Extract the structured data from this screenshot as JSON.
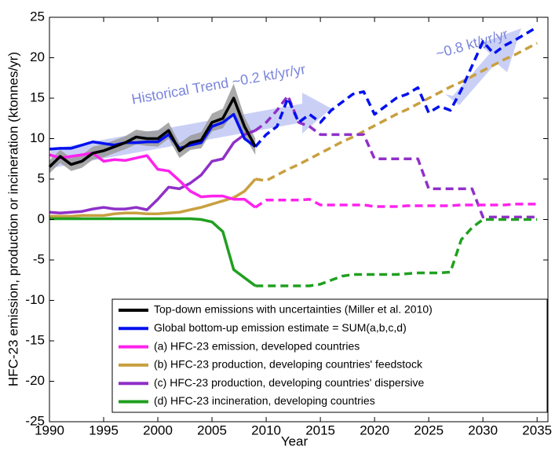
{
  "chart_data": {
    "type": "line",
    "xlabel": "Year",
    "ylabel": "HFC-23 emission, production or incineration (ktonnes/yr)",
    "annotations": [
      "Historical Trend ~0.2 kt/yr/yr",
      "~0.8 kt/yr/yr"
    ],
    "xlim": [
      1990,
      2036
    ],
    "ylim": [
      -25,
      25
    ],
    "xticks": [
      1990,
      1995,
      2000,
      2005,
      2010,
      2015,
      2020,
      2025,
      2030,
      2035
    ],
    "yticks": [
      -25,
      -20,
      -15,
      -10,
      -5,
      0,
      5,
      10,
      15,
      20,
      25
    ],
    "grid": false,
    "legend": "lower right",
    "x": [
      1990,
      1991,
      1992,
      1993,
      1994,
      1995,
      1996,
      1997,
      1998,
      1999,
      2000,
      2001,
      2002,
      2003,
      2004,
      2005,
      2006,
      2007,
      2008,
      2009,
      2010,
      2011,
      2012,
      2013,
      2014,
      2015,
      2016,
      2017,
      2018,
      2019,
      2020,
      2021,
      2022,
      2023,
      2024,
      2025,
      2026,
      2027,
      2028,
      2029,
      2030,
      2031,
      2032,
      2033,
      2034,
      2035
    ],
    "series": [
      {
        "name": "Top-down emissions with uncertainties (Miller et al. 2010)",
        "color": "#000000",
        "band_color": "#9a9a9a",
        "values": [
          6.5,
          7.8,
          6.8,
          7.2,
          8.2,
          8.5,
          9.0,
          9.5,
          10.2,
          10.0,
          10.0,
          11.0,
          8.5,
          9.5,
          9.8,
          12.0,
          12.5,
          15.0,
          11.5,
          9.0,
          null,
          null,
          null,
          null,
          null,
          null,
          null,
          null,
          null,
          null,
          null,
          null,
          null,
          null,
          null,
          null,
          null,
          null,
          null,
          null,
          null,
          null,
          null,
          null,
          null,
          null
        ],
        "errors": [
          0.8,
          0.8,
          0.8,
          0.8,
          0.8,
          0.8,
          0.8,
          0.8,
          0.9,
          0.9,
          1.0,
          1.0,
          0.9,
          0.9,
          1.0,
          1.1,
          1.2,
          1.8,
          1.2,
          1.0,
          null,
          null,
          null,
          null,
          null,
          null,
          null,
          null,
          null,
          null,
          null,
          null,
          null,
          null,
          null,
          null,
          null,
          null,
          null,
          null,
          null,
          null,
          null,
          null,
          null,
          null
        ]
      },
      {
        "name": "Global bottom-up emission estimate = SUM(a,b,c,d)",
        "color": "#0010f0",
        "values": [
          8.7,
          8.8,
          8.8,
          9.2,
          9.6,
          9.4,
          9.2,
          9.5,
          9.5,
          9.6,
          9.6,
          10.5,
          8.8,
          9.2,
          9.5,
          11.5,
          12.0,
          13.0,
          10.0,
          9.0,
          null,
          null,
          null,
          null,
          null,
          null,
          null,
          null,
          null,
          null,
          null,
          null,
          null,
          null,
          null,
          null,
          null,
          null,
          null,
          null,
          null,
          null,
          null,
          null,
          null,
          null
        ],
        "projection": [
          null,
          null,
          null,
          null,
          null,
          null,
          null,
          null,
          null,
          null,
          null,
          null,
          null,
          null,
          null,
          null,
          null,
          null,
          null,
          9.0,
          10.5,
          11.5,
          15.0,
          12.0,
          13.0,
          12.0,
          13.5,
          14.5,
          15.5,
          15.8,
          13.0,
          14.0,
          15.0,
          15.5,
          16.3,
          13.2,
          14.0,
          13.5,
          16.0,
          19.0,
          22.0,
          20.5,
          21.5,
          22.2,
          23.0,
          23.8
        ]
      },
      {
        "name": "(a) HFC-23 emission, developed countries",
        "color": "#ff22ee",
        "values": [
          8.0,
          7.6,
          7.8,
          8.0,
          8.2,
          7.2,
          7.4,
          7.3,
          7.6,
          7.9,
          6.2,
          6.0,
          4.8,
          3.5,
          2.8,
          2.9,
          2.9,
          2.5,
          2.5,
          1.5,
          null,
          null,
          null,
          null,
          null,
          null,
          null,
          null,
          null,
          null,
          null,
          null,
          null,
          null,
          null,
          null,
          null,
          null,
          null,
          null,
          null,
          null,
          null,
          null,
          null,
          null
        ],
        "projection": [
          null,
          null,
          null,
          null,
          null,
          null,
          null,
          null,
          null,
          null,
          null,
          null,
          null,
          null,
          null,
          null,
          null,
          null,
          null,
          1.5,
          2.4,
          2.4,
          2.4,
          2.4,
          2.5,
          1.8,
          1.8,
          1.8,
          1.8,
          1.8,
          1.6,
          1.6,
          1.6,
          1.7,
          1.7,
          1.7,
          1.7,
          1.7,
          1.8,
          1.8,
          1.8,
          1.8,
          1.8,
          1.9,
          1.9,
          1.9
        ]
      },
      {
        "name": "(b) HFC-23 production, developing countries' feedstock",
        "color": "#c8a040",
        "values": [
          0.4,
          0.4,
          0.4,
          0.5,
          0.5,
          0.5,
          0.7,
          0.8,
          0.8,
          0.7,
          0.7,
          0.8,
          0.9,
          1.2,
          1.5,
          1.9,
          2.3,
          2.7,
          3.5,
          5.0,
          null,
          null,
          null,
          null,
          null,
          null,
          null,
          null,
          null,
          null,
          null,
          null,
          null,
          null,
          null,
          null,
          null,
          null,
          null,
          null,
          null,
          null,
          null,
          null,
          null,
          null
        ],
        "projection": [
          null,
          null,
          null,
          null,
          null,
          null,
          null,
          null,
          null,
          null,
          null,
          null,
          null,
          null,
          null,
          null,
          null,
          null,
          null,
          5.0,
          4.8,
          5.5,
          6.2,
          6.8,
          7.5,
          8.2,
          8.9,
          9.6,
          10.2,
          10.9,
          11.6,
          12.3,
          13.0,
          13.6,
          14.3,
          15.0,
          15.7,
          16.4,
          17.0,
          17.7,
          18.4,
          19.1,
          19.8,
          20.4,
          21.1,
          21.8
        ]
      },
      {
        "name": "(c) HFC-23 production, developing countries' dispersive",
        "color": "#9030c8",
        "values": [
          0.9,
          0.8,
          0.9,
          1.0,
          1.3,
          1.5,
          1.3,
          1.3,
          1.5,
          1.2,
          2.5,
          4.0,
          3.8,
          4.5,
          5.5,
          7.2,
          7.5,
          9.5,
          10.5,
          11.0,
          null,
          null,
          null,
          null,
          null,
          null,
          null,
          null,
          null,
          null,
          null,
          null,
          null,
          null,
          null,
          null,
          null,
          null,
          null,
          null,
          null,
          null,
          null,
          null,
          null,
          null
        ],
        "projection": [
          null,
          null,
          null,
          null,
          null,
          null,
          null,
          null,
          null,
          null,
          null,
          null,
          null,
          null,
          null,
          null,
          null,
          null,
          null,
          11.0,
          12.0,
          13.5,
          15.3,
          12.0,
          11.5,
          10.5,
          10.5,
          10.5,
          10.5,
          10.5,
          7.5,
          7.5,
          7.5,
          7.5,
          7.5,
          3.8,
          3.8,
          3.8,
          3.8,
          3.8,
          0.3,
          0.3,
          0.3,
          0.3,
          0.3,
          0.3
        ]
      },
      {
        "name": "(d) HFC-23 incineration, developing countries",
        "color": "#20a020",
        "values": [
          0.1,
          0.1,
          0.1,
          0.1,
          0.1,
          0.1,
          0.1,
          0.1,
          0.1,
          0.1,
          0.1,
          0.1,
          0.1,
          0.1,
          0.0,
          -0.3,
          -1.5,
          -6.2,
          -7.2,
          -8.2,
          null,
          null,
          null,
          null,
          null,
          null,
          null,
          null,
          null,
          null,
          null,
          null,
          null,
          null,
          null,
          null,
          null,
          null,
          null,
          null,
          null,
          null,
          null,
          null,
          null,
          null
        ],
        "projection": [
          null,
          null,
          null,
          null,
          null,
          null,
          null,
          null,
          null,
          null,
          null,
          null,
          null,
          null,
          null,
          null,
          null,
          null,
          null,
          -8.2,
          -8.2,
          -8.2,
          -8.2,
          -8.2,
          -8.2,
          -8.0,
          -7.5,
          -7.0,
          -6.8,
          -6.8,
          -6.8,
          -6.8,
          -6.8,
          -6.7,
          -6.6,
          -6.6,
          -6.6,
          -6.5,
          -2.5,
          -1.0,
          0,
          0,
          0,
          0,
          0,
          0
        ]
      }
    ]
  }
}
